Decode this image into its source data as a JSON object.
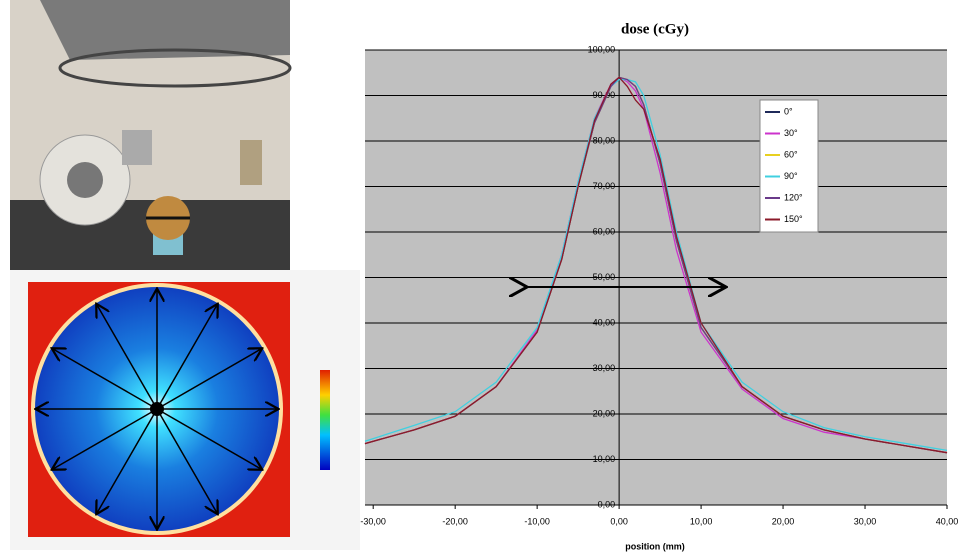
{
  "chart_data": {
    "type": "line",
    "title": "dose (cGy)",
    "x_label": "position (mm)",
    "x": [
      -31,
      -25,
      -20,
      -15,
      -10,
      -7,
      -5,
      -3,
      -1,
      0,
      1,
      2,
      3,
      5,
      7,
      10,
      15,
      20,
      25,
      30,
      35,
      40
    ],
    "series": [
      {
        "name": "0°",
        "color": "#1f2a5a",
        "values": [
          13.5,
          16.5,
          19.5,
          26,
          38,
          54,
          70,
          84,
          92,
          94,
          93.5,
          92,
          88,
          75,
          58,
          39,
          26,
          19.5,
          16.5,
          14.5,
          13,
          11.5
        ]
      },
      {
        "name": "30°",
        "color": "#cc33cc",
        "values": [
          13.5,
          16.5,
          19.5,
          26,
          38.5,
          55,
          71,
          85,
          92.5,
          94,
          93,
          91,
          87,
          73,
          56,
          38,
          25.5,
          19,
          16,
          14.5,
          13,
          11.5
        ]
      },
      {
        "name": "60°",
        "color": "#e8d020",
        "values": [
          13.5,
          16.5,
          19.5,
          26,
          38,
          54,
          70,
          84,
          92,
          94,
          93.5,
          92,
          88,
          75,
          58,
          39,
          26,
          19.5,
          16.5,
          14.5,
          13,
          11.5
        ]
      },
      {
        "name": "90°",
        "color": "#40d0e0",
        "values": [
          14,
          17.5,
          20.5,
          27,
          39,
          55,
          71,
          85,
          92,
          93.5,
          93.5,
          93,
          90,
          77,
          60,
          40,
          27,
          20.5,
          17,
          15,
          13.5,
          12
        ]
      },
      {
        "name": "120°",
        "color": "#6a3a8a",
        "values": [
          13.5,
          16.5,
          19.5,
          26,
          38,
          54,
          70,
          84,
          92,
          94,
          93.5,
          92,
          88,
          75,
          58,
          39,
          26,
          19.5,
          16.5,
          14.5,
          13,
          11.5
        ]
      },
      {
        "name": "150°",
        "color": "#8b1a2a",
        "values": [
          13.5,
          16.5,
          19.5,
          26,
          38,
          54,
          70,
          84.5,
          92.5,
          94,
          92,
          89,
          87,
          76,
          59,
          40,
          26,
          19.5,
          16.5,
          14.5,
          13,
          11.5
        ]
      }
    ],
    "xlim": [
      -31,
      40
    ],
    "ylim": [
      0,
      100
    ],
    "xticks": [
      {
        "value": -30,
        "label": "-30,00"
      },
      {
        "value": -20,
        "label": "-20,00"
      },
      {
        "value": -10,
        "label": "-10,00"
      },
      {
        "value": 0,
        "label": "0,00"
      },
      {
        "value": 10,
        "label": "10,00"
      },
      {
        "value": 20,
        "label": "20,00"
      },
      {
        "value": 30,
        "label": "30,00"
      },
      {
        "value": 40,
        "label": "40,00"
      }
    ],
    "yticks": [
      {
        "value": 0,
        "label": "0,00"
      },
      {
        "value": 10,
        "label": "10,00"
      },
      {
        "value": 20,
        "label": "20,00"
      },
      {
        "value": 30,
        "label": "30,00"
      },
      {
        "value": 40,
        "label": "40,00"
      },
      {
        "value": 50,
        "label": "50,00"
      },
      {
        "value": 60,
        "label": "60,00"
      },
      {
        "value": 70,
        "label": "70,00"
      },
      {
        "value": 80,
        "label": "80,00"
      },
      {
        "value": 90,
        "label": "90,00"
      },
      {
        "value": 100,
        "label": "100,00"
      }
    ],
    "grid": true,
    "legend": "upper right"
  }
}
